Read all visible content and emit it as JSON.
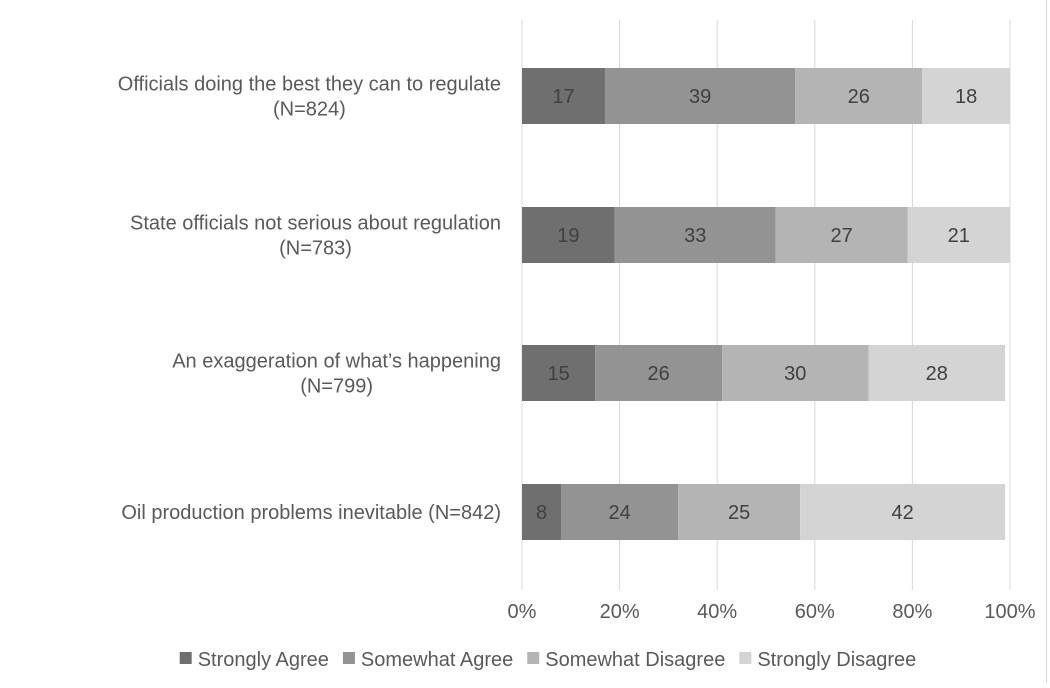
{
  "chart_data": {
    "type": "bar",
    "orientation": "horizontal",
    "stacked": "percent",
    "title": "",
    "xlabel": "",
    "ylabel": "",
    "xlim": [
      0,
      100
    ],
    "x_ticks": [
      "0%",
      "20%",
      "40%",
      "60%",
      "80%",
      "100%"
    ],
    "x_tick_values": [
      0,
      20,
      40,
      60,
      80,
      100
    ],
    "grid": "vertical",
    "legend_position": "bottom",
    "categories": [
      [
        "Officials doing the best they can to regulate",
        "(N=824)"
      ],
      [
        "State officials not serious about regulation",
        "(N=783)"
      ],
      [
        "An exaggeration of what’s happening",
        "(N=799)"
      ],
      [
        "Oil production problems inevitable (N=842)"
      ]
    ],
    "series": [
      {
        "name": "Strongly Agree",
        "color": "#6f6f6f",
        "values": [
          17,
          19,
          15,
          8
        ]
      },
      {
        "name": "Somewhat Agree",
        "color": "#939393",
        "values": [
          39,
          33,
          26,
          24
        ]
      },
      {
        "name": "Somewhat Disagree",
        "color": "#b4b4b4",
        "values": [
          26,
          27,
          30,
          25
        ]
      },
      {
        "name": "Strongly Disagree",
        "color": "#d4d4d4",
        "values": [
          18,
          21,
          28,
          42
        ]
      }
    ],
    "colors": {
      "text": "#595959",
      "label": "#404040",
      "grid": "#d9d9d9"
    }
  }
}
